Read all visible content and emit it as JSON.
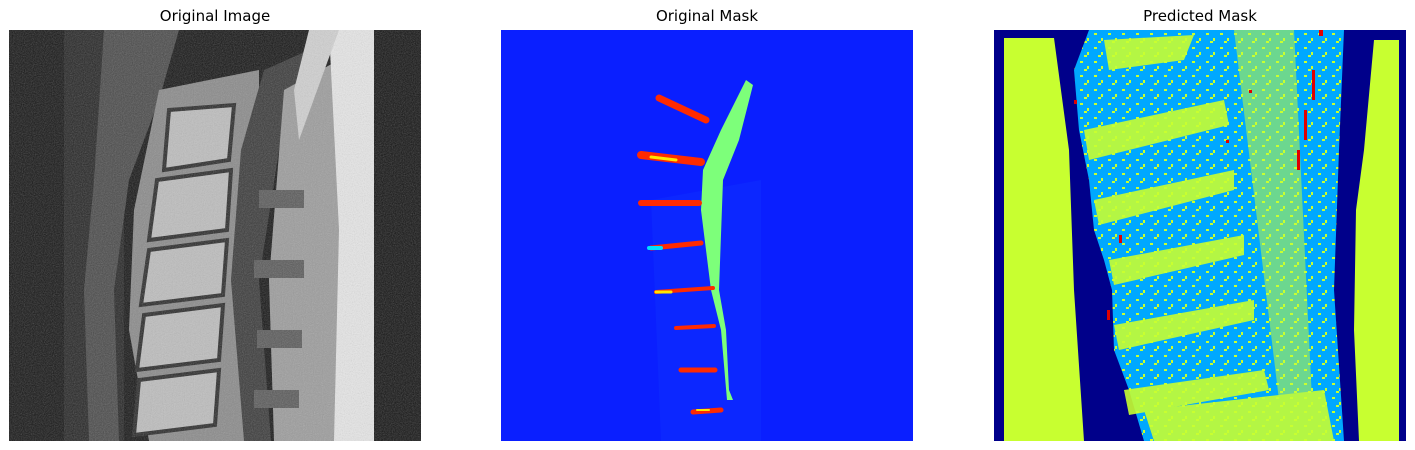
{
  "panels": [
    {
      "title": "Original Image"
    },
    {
      "title": "Original Mask"
    },
    {
      "title": "Predicted Mask"
    }
  ]
}
